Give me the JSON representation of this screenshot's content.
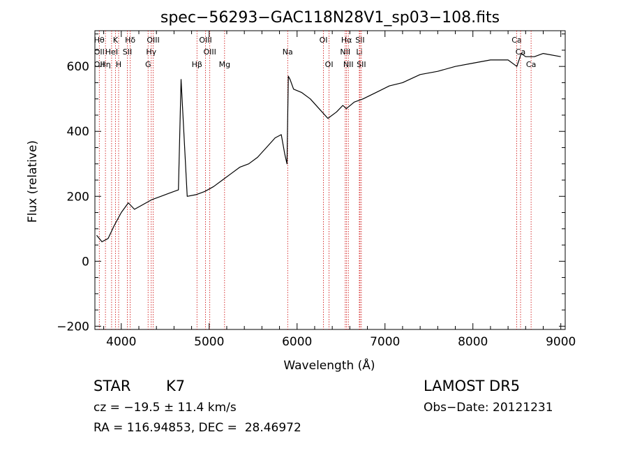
{
  "chart_data": {
    "type": "line",
    "title": "spec−56293−GAC118N28V1_sp03−108.fits",
    "xlabel": "Wavelength (Å)",
    "ylabel": "Flux (relative)",
    "xlim": [
      3700,
      9050
    ],
    "ylim": [
      -210,
      710
    ],
    "xticks": [
      4000,
      5000,
      6000,
      7000,
      8000,
      9000
    ],
    "yticks": [
      -200,
      0,
      200,
      400,
      600
    ],
    "xtick_labels": [
      "4000",
      "5000",
      "6000",
      "7000",
      "8000",
      "9000"
    ],
    "ytick_labels": [
      "−200",
      "0",
      "200",
      "400",
      "600"
    ],
    "grid": false,
    "series": [
      {
        "color": "#000000",
        "x": [
          3720,
          3780,
          3850,
          3920,
          4000,
          4080,
          4150,
          4250,
          4350,
          4450,
          4550,
          4650,
          4680,
          4750,
          4850,
          4950,
          5050,
          5150,
          5250,
          5350,
          5450,
          5550,
          5650,
          5750,
          5820,
          5860,
          5885,
          5900,
          5920,
          5960,
          6050,
          6150,
          6250,
          6350,
          6450,
          6520,
          6560,
          6650,
          6750,
          6900,
          7050,
          7200,
          7400,
          7600,
          7800,
          8000,
          8200,
          8400,
          8500,
          8550,
          8600,
          8700,
          8800,
          9000
        ],
        "y": [
          80,
          60,
          70,
          110,
          150,
          180,
          160,
          175,
          190,
          200,
          210,
          220,
          560,
          200,
          205,
          215,
          230,
          250,
          270,
          290,
          300,
          320,
          350,
          380,
          390,
          330,
          300,
          570,
          560,
          530,
          520,
          500,
          470,
          440,
          460,
          480,
          470,
          490,
          500,
          520,
          540,
          550,
          575,
          585,
          600,
          610,
          620,
          620,
          600,
          640,
          630,
          630,
          640,
          630
        ]
      }
    ],
    "line_marks": [
      {
        "wl": 3750,
        "upper": "Hθ",
        "mid": "OII",
        "low": "OII"
      },
      {
        "wl": 3820,
        "upper": "",
        "mid": "",
        "low": "Hη"
      },
      {
        "wl": 3890,
        "upper": "",
        "mid": "HeI",
        "low": ""
      },
      {
        "wl": 3934,
        "upper": "K",
        "mid": "",
        "low": ""
      },
      {
        "wl": 3970,
        "upper": "",
        "mid": "",
        "low": "H"
      },
      {
        "wl": 4069,
        "upper": "",
        "mid": "SII",
        "low": ""
      },
      {
        "wl": 4102,
        "upper": "Hδ",
        "mid": "",
        "low": ""
      },
      {
        "wl": 4305,
        "upper": "",
        "mid": "",
        "low": "G"
      },
      {
        "wl": 4341,
        "upper": "",
        "mid": "Hγ",
        "low": ""
      },
      {
        "wl": 4363,
        "upper": "OIII",
        "mid": "",
        "low": ""
      },
      {
        "wl": 4861,
        "upper": "",
        "mid": "",
        "low": "Hβ"
      },
      {
        "wl": 4959,
        "upper": "OIII",
        "mid": "",
        "low": ""
      },
      {
        "wl": 5007,
        "upper": "",
        "mid": "OIII",
        "low": ""
      },
      {
        "wl": 5175,
        "upper": "",
        "mid": "",
        "low": "Mg"
      },
      {
        "wl": 5893,
        "upper": "",
        "mid": "Na",
        "low": ""
      },
      {
        "wl": 6300,
        "upper": "OI",
        "mid": "",
        "low": ""
      },
      {
        "wl": 6364,
        "upper": "",
        "mid": "",
        "low": "OI"
      },
      {
        "wl": 6548,
        "upper": "",
        "mid": "NII",
        "low": ""
      },
      {
        "wl": 6563,
        "upper": "Hα",
        "mid": "",
        "low": ""
      },
      {
        "wl": 6583,
        "upper": "",
        "mid": "",
        "low": "NII"
      },
      {
        "wl": 6708,
        "upper": "",
        "mid": "Li",
        "low": ""
      },
      {
        "wl": 6716,
        "upper": "SII",
        "mid": "",
        "low": ""
      },
      {
        "wl": 6731,
        "upper": "",
        "mid": "",
        "low": "SII"
      },
      {
        "wl": 8498,
        "upper": "Ca",
        "mid": "",
        "low": ""
      },
      {
        "wl": 8542,
        "upper": "",
        "mid": "Ca",
        "low": ""
      },
      {
        "wl": 8662,
        "upper": "",
        "mid": "",
        "low": "Ca"
      }
    ]
  },
  "info": {
    "class": "STAR",
    "subclass": "K7",
    "survey": "LAMOST DR5",
    "cz": "cz = −19.5 ± 11.4 km/s",
    "obs_date": "Obs−Date: 20121231",
    "radec": "RA = 116.94853, DEC =  28.46972"
  },
  "colors": {
    "spectrum": "#000000",
    "marker_lines": "#cc0000"
  }
}
